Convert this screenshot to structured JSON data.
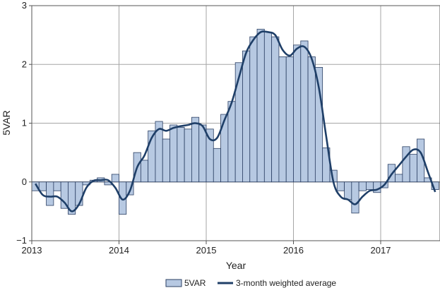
{
  "chart_data": {
    "type": "bar+line",
    "title": "",
    "xlabel": "Year",
    "ylabel": "5VAR",
    "ylim": [
      -1,
      3
    ],
    "yticks": [
      "−1",
      "0",
      "1",
      "2",
      "3"
    ],
    "xticks": [
      "2013",
      "2014",
      "2015",
      "2016",
      "2017"
    ],
    "grid": true,
    "legend_position": "bottom-center",
    "colors": {
      "bar_fill": "#b7c9e2",
      "bar_stroke": "#2b3f63",
      "line": "#1f3f68",
      "grid": "#a6a6a6",
      "axis": "#555555"
    },
    "series": [
      {
        "name": "5VAR",
        "kind": "bar",
        "x_start": "2013-01",
        "frequency": "monthly",
        "values": [
          -0.15,
          -0.15,
          -0.4,
          -0.15,
          -0.45,
          -0.55,
          -0.4,
          -0.05,
          0.03,
          0.07,
          -0.05,
          0.13,
          -0.55,
          -0.22,
          0.5,
          0.37,
          0.87,
          1.03,
          0.73,
          0.97,
          0.93,
          0.9,
          1.1,
          0.97,
          0.9,
          0.57,
          1.15,
          1.37,
          2.03,
          2.23,
          2.47,
          2.6,
          2.55,
          2.47,
          2.13,
          2.13,
          2.33,
          2.4,
          2.13,
          1.95,
          0.58,
          0.2,
          -0.15,
          -0.3,
          -0.53,
          -0.15,
          -0.13,
          -0.18,
          -0.1,
          0.3,
          0.13,
          0.6,
          0.47,
          0.73,
          0.07,
          -0.13
        ]
      },
      {
        "name": "3-month weighted average",
        "kind": "line",
        "x_start": "2013-01",
        "frequency": "monthly",
        "values": [
          -0.03,
          -0.22,
          -0.25,
          -0.25,
          -0.35,
          -0.5,
          -0.38,
          -0.1,
          0.02,
          0.03,
          0.03,
          -0.1,
          -0.3,
          -0.15,
          0.25,
          0.45,
          0.75,
          0.9,
          0.87,
          0.92,
          0.95,
          0.97,
          1.0,
          0.95,
          0.73,
          0.75,
          1.05,
          1.35,
          1.78,
          2.2,
          2.42,
          2.55,
          2.55,
          2.5,
          2.25,
          2.15,
          2.27,
          2.3,
          2.1,
          1.6,
          0.78,
          0.0,
          -0.25,
          -0.3,
          -0.38,
          -0.25,
          -0.15,
          -0.13,
          -0.05,
          0.13,
          0.28,
          0.43,
          0.55,
          0.5,
          0.17,
          -0.17
        ]
      }
    ]
  }
}
